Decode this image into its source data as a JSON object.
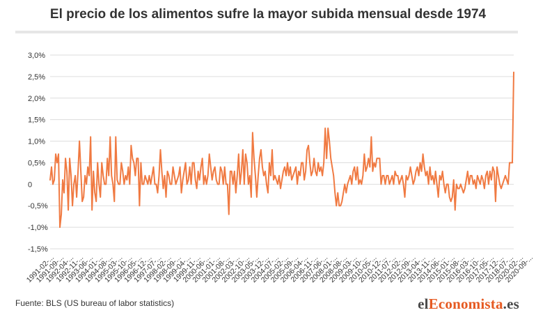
{
  "title": "El precio de los alimentos sufre la mayor subida mensual desde 1974",
  "source": "Fuente: BLS (US bureau of labor statistics)",
  "brand": {
    "pre": "el",
    "accent": "Economista",
    "post": ".es"
  },
  "colors": {
    "line": "#f07a42",
    "grid": "#dddddd",
    "text": "#333333",
    "accent": "#e65a22"
  },
  "chart_data": {
    "type": "line",
    "title": "",
    "xlabel": "",
    "ylabel": "",
    "ylim": [
      -1.5,
      3.0
    ],
    "yticks": [
      {
        "value": 3.0,
        "label": "3,0%"
      },
      {
        "value": 2.5,
        "label": "2,5%"
      },
      {
        "value": 2.0,
        "label": "2,0%"
      },
      {
        "value": 1.5,
        "label": "1,5%"
      },
      {
        "value": 1.0,
        "label": "1,0%"
      },
      {
        "value": 0.5,
        "label": "0,5%"
      },
      {
        "value": 0.0,
        "label": "0"
      },
      {
        "value": -0.5,
        "label": "-0,5%"
      },
      {
        "value": -1.0,
        "label": "-1,0%"
      },
      {
        "value": -1.5,
        "label": "-1,5%"
      }
    ],
    "xticks": [
      {
        "index": 0,
        "label": "1991-02-..."
      },
      {
        "index": 7,
        "label": "1991-09-..."
      },
      {
        "index": 14,
        "label": "1992-04-..."
      },
      {
        "index": 21,
        "label": "1992-11-..."
      },
      {
        "index": 28,
        "label": "1993-06-..."
      },
      {
        "index": 35,
        "label": "1994-01-..."
      },
      {
        "index": 42,
        "label": "1994-08-..."
      },
      {
        "index": 49,
        "label": "1995-03-..."
      },
      {
        "index": 56,
        "label": "1995-10-..."
      },
      {
        "index": 63,
        "label": "1996-05-..."
      },
      {
        "index": 70,
        "label": "1996-12-..."
      },
      {
        "index": 77,
        "label": "1997-07-..."
      },
      {
        "index": 84,
        "label": "1998-02-..."
      },
      {
        "index": 91,
        "label": "1998-09-..."
      },
      {
        "index": 98,
        "label": "1999-04-..."
      },
      {
        "index": 105,
        "label": "1999-11-..."
      },
      {
        "index": 112,
        "label": "2000-06-..."
      },
      {
        "index": 119,
        "label": "2001-01-..."
      },
      {
        "index": 126,
        "label": "2001-08-..."
      },
      {
        "index": 133,
        "label": "2002-03-..."
      },
      {
        "index": 140,
        "label": "2002-10-..."
      },
      {
        "index": 147,
        "label": "2003-05-..."
      },
      {
        "index": 154,
        "label": "2003-12-..."
      },
      {
        "index": 161,
        "label": "2004-07-..."
      },
      {
        "index": 168,
        "label": "2005-02-..."
      },
      {
        "index": 175,
        "label": "2005-09-..."
      },
      {
        "index": 182,
        "label": "2006-04-..."
      },
      {
        "index": 189,
        "label": "2006-11-..."
      },
      {
        "index": 196,
        "label": "2007-06-..."
      },
      {
        "index": 203,
        "label": "2008-01-..."
      },
      {
        "index": 210,
        "label": "2008-08-..."
      },
      {
        "index": 217,
        "label": "2009-03-..."
      },
      {
        "index": 224,
        "label": "2009-10-..."
      },
      {
        "index": 231,
        "label": "2010-05-..."
      },
      {
        "index": 238,
        "label": "2010-12-..."
      },
      {
        "index": 245,
        "label": "2011-07-..."
      },
      {
        "index": 252,
        "label": "2012-02-..."
      },
      {
        "index": 259,
        "label": "2012-09-..."
      },
      {
        "index": 266,
        "label": "2013-04-..."
      },
      {
        "index": 273,
        "label": "2013-11-..."
      },
      {
        "index": 280,
        "label": "2014-06-..."
      },
      {
        "index": 287,
        "label": "2015-01-..."
      },
      {
        "index": 294,
        "label": "2015-08-..."
      },
      {
        "index": 301,
        "label": "2016-03-..."
      },
      {
        "index": 308,
        "label": "2016-10-..."
      },
      {
        "index": 315,
        "label": "2017-05-..."
      },
      {
        "index": 322,
        "label": "2017-12-..."
      },
      {
        "index": 329,
        "label": "2018-07-..."
      },
      {
        "index": 336,
        "label": "2020-02-..."
      },
      {
        "index": 343,
        "label": "2020-09-..."
      }
    ],
    "series": [
      {
        "name": "",
        "values": [
          0.1,
          0.4,
          0.0,
          0.1,
          0.7,
          0.5,
          0.7,
          -1.0,
          -0.7,
          0.1,
          -0.2,
          0.6,
          0.3,
          -0.6,
          0.6,
          0.2,
          -0.5,
          0.0,
          0.2,
          -0.3,
          0.3,
          1.0,
          0.3,
          -0.4,
          -0.3,
          0.2,
          0.0,
          0.4,
          0.2,
          1.1,
          -0.6,
          0.3,
          -0.2,
          -0.4,
          0.5,
          0.0,
          -0.3,
          0.5,
          0.2,
          0.0,
          0.0,
          0.6,
          0.2,
          1.1,
          0.2,
          0.0,
          -0.4,
          1.1,
          0.1,
          0.0,
          0.0,
          0.5,
          0.3,
          0.0,
          0.2,
          0.1,
          0.4,
          0.0,
          0.9,
          0.6,
          0.5,
          0.2,
          0.6,
          0.6,
          -0.5,
          0.5,
          0.0,
          0.0,
          0.2,
          0.1,
          0.0,
          0.2,
          0.0,
          0.2,
          0.4,
          0.0,
          0.0,
          -0.2,
          0.2,
          0.8,
          0.3,
          -0.1,
          0.2,
          -0.3,
          0.3,
          0.2,
          0.0,
          0.0,
          0.4,
          0.2,
          0.0,
          0.1,
          0.2,
          0.4,
          -0.2,
          0.1,
          0.3,
          0.5,
          0.0,
          0.1,
          0.4,
          0.0,
          0.5,
          0.5,
          0.1,
          -0.1,
          0.3,
          0.1,
          0.4,
          0.6,
          0.0,
          0.2,
          0.0,
          0.2,
          0.7,
          0.4,
          0.1,
          0.3,
          0.4,
          0.1,
          0.0,
          0.0,
          0.4,
          0.3,
          0.0,
          0.4,
          0.0,
          0.0,
          -0.7,
          0.3,
          0.3,
          0.0,
          0.3,
          -0.2,
          0.2,
          0.7,
          0.0,
          0.3,
          0.8,
          0.0,
          0.7,
          0.5,
          0.0,
          0.2,
          -0.3,
          1.2,
          0.6,
          0.2,
          -0.3,
          0.2,
          0.6,
          0.8,
          0.4,
          0.2,
          0.3,
          0.0,
          -0.2,
          0.5,
          0.2,
          0.8,
          0.1,
          0.2,
          0.1,
          0.0,
          0.2,
          -0.1,
          0.1,
          0.3,
          0.4,
          0.2,
          0.5,
          0.2,
          0.4,
          0.1,
          0.2,
          0.3,
          0.4,
          0.0,
          0.3,
          0.2,
          0.5,
          0.5,
          0.1,
          0.3,
          0.8,
          0.9,
          0.5,
          0.2,
          0.3,
          0.6,
          0.3,
          0.2,
          0.5,
          0.3,
          0.4,
          0.2,
          0.5,
          1.3,
          0.6,
          1.3,
          1.0,
          0.6,
          0.4,
          0.2,
          -0.2,
          -0.5,
          -0.2,
          -0.5,
          -0.5,
          -0.4,
          -0.2,
          0.0,
          -0.2,
          0.0,
          0.1,
          0.2,
          0.0,
          0.3,
          0.4,
          0.1,
          0.4,
          0.0,
          0.1,
          0.0,
          0.2,
          0.7,
          0.3,
          0.4,
          0.6,
          0.4,
          1.1,
          0.3,
          0.5,
          0.4,
          0.6,
          0.6,
          0.6,
          0.0,
          0.2,
          0.2,
          0.0,
          0.2,
          0.2,
          0.0,
          0.1,
          0.2,
          0.0,
          0.3,
          0.2,
          0.2,
          0.0,
          0.1,
          0.2,
          0.0,
          -0.3,
          0.2,
          0.1,
          0.2,
          0.4,
          0.2,
          0.0,
          0.1,
          0.3,
          0.4,
          0.2,
          0.5,
          0.3,
          0.7,
          0.4,
          0.2,
          0.3,
          0.0,
          0.4,
          0.1,
          0.2,
          0.0,
          0.3,
          0.0,
          -0.3,
          0.2,
          0.1,
          0.3,
          0.0,
          -0.2,
          0.0,
          0.0,
          -0.3,
          -0.4,
          -0.3,
          0.1,
          -0.6,
          0.0,
          -0.1,
          -0.1,
          0.0,
          -0.1,
          -0.2,
          -0.1,
          0.1,
          0.3,
          0.0,
          0.2,
          0.2,
          0.0,
          0.1,
          -0.1,
          0.2,
          0.1,
          0.0,
          0.2,
          0.1,
          -0.1,
          0.2,
          0.3,
          0.0,
          0.3,
          0.1,
          0.4,
          0.3,
          -0.4,
          0.4,
          0.2,
          0.0,
          -0.1,
          0.0,
          0.1,
          0.2,
          0.1,
          0.0,
          0.5,
          0.5,
          0.5,
          2.6
        ]
      }
    ]
  }
}
